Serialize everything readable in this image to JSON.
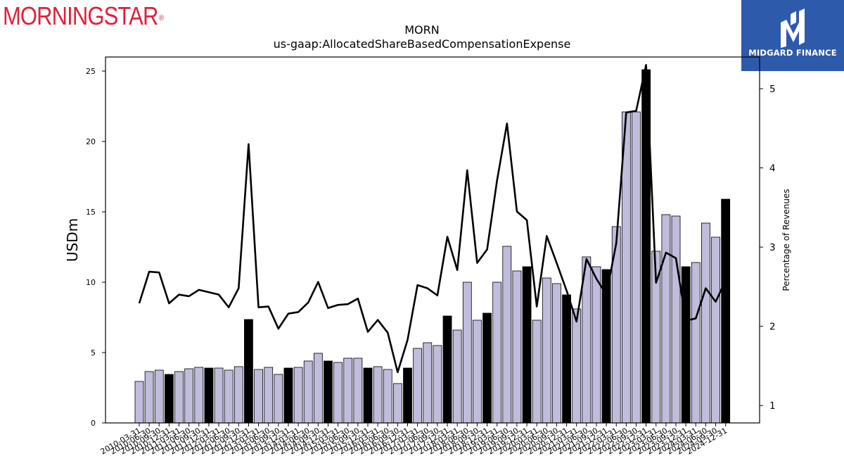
{
  "branding": {
    "left_logo": "MORNINGSTAR",
    "left_logo_mark": "®",
    "right_logo": "MIDGARD FINANCE",
    "right_logo_icon": "midgard-m-icon",
    "right_logo_bg": "#2e5aac",
    "left_logo_color": "#e0203a"
  },
  "chart_data": {
    "type": "bar",
    "title": "MORN",
    "subtitle": "us-gaap:AllocatedShareBasedCompensationExpense",
    "ylabel": "USDm",
    "y2label": "Percentage of Revenues",
    "ylim": [
      0,
      26
    ],
    "y2lim": [
      0.78,
      5.4
    ],
    "yticks": [
      0,
      5,
      10,
      15,
      20,
      25
    ],
    "y2ticks": [
      1,
      2,
      3,
      4,
      5
    ],
    "colors": {
      "quarter_bar": "#bfbcdc",
      "annual_bar": "#000000",
      "line": "#000000"
    },
    "categories": [
      "2010-03-31",
      "2010-06-30",
      "2010-09-30",
      "2010-12-31",
      "2011-03-31",
      "2011-06-30",
      "2011-09-30",
      "2011-12-31",
      "2012-03-31",
      "2012-06-30",
      "2012-09-30",
      "2012-12-31",
      "2013-03-31",
      "2013-06-30",
      "2013-09-30",
      "2013-12-31",
      "2014-03-31",
      "2014-06-30",
      "2014-09-30",
      "2014-12-31",
      "2015-03-31",
      "2015-06-30",
      "2015-09-30",
      "2015-12-31",
      "2016-03-31",
      "2016-06-30",
      "2016-09-30",
      "2016-12-31",
      "2017-03-31",
      "2017-06-30",
      "2017-09-30",
      "2017-12-31",
      "2018-03-31",
      "2018-06-30",
      "2018-09-30",
      "2018-12-31",
      "2019-03-31",
      "2019-06-30",
      "2019-09-30",
      "2019-12-31",
      "2020-03-31",
      "2020-06-30",
      "2020-09-30",
      "2020-12-31",
      "2021-03-31",
      "2021-06-30",
      "2021-09-30",
      "2021-12-31",
      "2022-03-31",
      "2022-06-30",
      "2022-09-30",
      "2022-12-31",
      "2023-03-31",
      "2023-06-30",
      "2023-09-30",
      "2023-12-31",
      "2024-03-31",
      "2024-06-30",
      "2024-09-30",
      "2024-12-31"
    ],
    "series": [
      {
        "type": "bar",
        "values": [
          2.95,
          3.65,
          3.75,
          3.45,
          3.65,
          3.85,
          3.95,
          3.9,
          3.9,
          3.75,
          4.0,
          7.35,
          3.8,
          3.95,
          3.45,
          3.9,
          3.95,
          4.4,
          4.95,
          4.4,
          4.3,
          4.6,
          4.6,
          3.9,
          4.0,
          3.8,
          2.8,
          3.9,
          5.3,
          5.7,
          5.5,
          7.6,
          6.6,
          10.0,
          7.3,
          7.8,
          10.0,
          12.55,
          10.8,
          11.1,
          7.3,
          10.3,
          9.9,
          9.1,
          8.1,
          11.8,
          11.1,
          10.9,
          13.95,
          22.1,
          22.1,
          25.1,
          12.2,
          14.8,
          14.7,
          11.1,
          11.4,
          14.2,
          13.2,
          15.9
        ],
        "annual": [
          false,
          false,
          false,
          true,
          false,
          false,
          false,
          true,
          false,
          false,
          false,
          true,
          false,
          false,
          false,
          true,
          false,
          false,
          false,
          true,
          false,
          false,
          false,
          true,
          false,
          false,
          false,
          true,
          false,
          false,
          false,
          true,
          false,
          false,
          false,
          true,
          false,
          false,
          false,
          true,
          false,
          false,
          false,
          true,
          false,
          false,
          false,
          true,
          false,
          false,
          false,
          true,
          false,
          false,
          false,
          true,
          false,
          false,
          false,
          true
        ]
      },
      {
        "type": "line",
        "axis": "right",
        "values": [
          2.29,
          2.69,
          2.68,
          2.29,
          2.4,
          2.38,
          2.46,
          2.43,
          2.4,
          2.24,
          2.48,
          4.3,
          2.24,
          2.25,
          1.97,
          2.16,
          2.18,
          2.3,
          2.56,
          2.23,
          2.27,
          2.28,
          2.35,
          1.93,
          2.08,
          1.92,
          1.42,
          1.83,
          2.52,
          2.48,
          2.39,
          3.13,
          2.71,
          3.97,
          2.8,
          2.97,
          3.84,
          4.56,
          3.45,
          3.34,
          2.25,
          3.14,
          2.8,
          2.45,
          2.06,
          2.85,
          2.6,
          2.4,
          3.05,
          4.7,
          4.72,
          5.3,
          2.55,
          2.93,
          2.86,
          2.07,
          2.1,
          2.48,
          2.31,
          2.58
        ]
      }
    ]
  }
}
